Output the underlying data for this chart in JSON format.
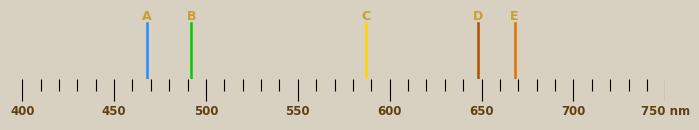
{
  "xlim": [
    400,
    750
  ],
  "spectrum_lines": [
    {
      "label": "A",
      "wavelength": 468,
      "color": "#1e90ff"
    },
    {
      "label": "B",
      "wavelength": 492,
      "color": "#00cc00"
    },
    {
      "label": "C",
      "wavelength": 587,
      "color": "#ffd700"
    },
    {
      "label": "D",
      "wavelength": 648,
      "color": "#b05000"
    },
    {
      "label": "E",
      "wavelength": 668,
      "color": "#e07000"
    }
  ],
  "tick_positions": [
    400,
    450,
    500,
    550,
    600,
    650,
    700,
    750
  ],
  "tick_labels": [
    "400",
    "450",
    "500",
    "550",
    "600",
    "650",
    "700",
    "750 nm"
  ],
  "background_color": "#111111",
  "figure_background": "#d8d0c0",
  "label_color": "#c8a030",
  "tick_color": "#604010",
  "label_fontsize": 9,
  "tick_fontsize": 8.5,
  "line_width": 1.8
}
